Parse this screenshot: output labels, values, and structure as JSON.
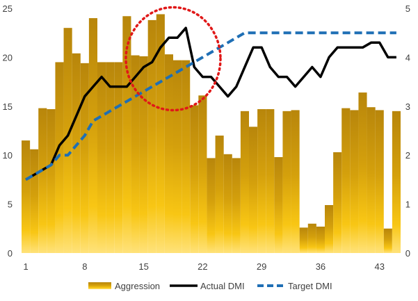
{
  "chart_data": {
    "type": "bar",
    "x": [
      1,
      2,
      3,
      4,
      5,
      6,
      7,
      8,
      9,
      10,
      11,
      12,
      13,
      14,
      15,
      16,
      17,
      18,
      19,
      20,
      21,
      22,
      23,
      24,
      25,
      26,
      27,
      28,
      29,
      30,
      31,
      32,
      33,
      34,
      35,
      36,
      37,
      38,
      39,
      40,
      41,
      42,
      43,
      44,
      45
    ],
    "x_ticks": [
      "1",
      "8",
      "15",
      "22",
      "29",
      "36",
      "43"
    ],
    "y_left_ticks": [
      "0",
      "5",
      "10",
      "15",
      "20",
      "25"
    ],
    "y_right_ticks": [
      "0",
      "1",
      "2",
      "3",
      "4",
      "5"
    ],
    "ylim_left": [
      0,
      25
    ],
    "ylim_right": [
      0,
      5
    ],
    "grid": false,
    "legend_position": "bottom",
    "series": [
      {
        "name": "Aggression",
        "type": "bar",
        "axis": "left",
        "values": [
          11.5,
          10.6,
          14.8,
          14.7,
          19.5,
          23.0,
          20.4,
          19.4,
          24.0,
          19.5,
          19.5,
          19.5,
          24.2,
          20.2,
          20.1,
          23.8,
          24.4,
          20.3,
          19.7,
          19.7,
          15.1,
          16.1,
          9.7,
          12.0,
          10.1,
          9.7,
          14.5,
          12.9,
          14.7,
          14.7,
          9.8,
          14.5,
          14.6,
          2.6,
          3.0,
          2.7,
          4.9,
          10.3,
          14.8,
          14.6,
          16.4,
          14.9,
          14.6,
          2.5,
          14.5
        ]
      },
      {
        "name": "Actual DMI",
        "type": "line",
        "axis": "right",
        "values": [
          1.5,
          1.6,
          1.7,
          1.8,
          2.2,
          2.4,
          2.8,
          3.2,
          3.4,
          3.6,
          3.4,
          3.4,
          3.4,
          3.6,
          3.8,
          3.9,
          4.2,
          4.4,
          4.4,
          4.6,
          3.8,
          3.6,
          3.6,
          3.4,
          3.2,
          3.4,
          3.8,
          4.2,
          4.2,
          3.8,
          3.6,
          3.6,
          3.4,
          3.6,
          3.8,
          3.6,
          4.0,
          4.2,
          4.2,
          4.2,
          4.2,
          4.3,
          4.3,
          4.0,
          4.0
        ]
      },
      {
        "name": "Target DMI",
        "type": "line",
        "axis": "right",
        "values": [
          1.5,
          1.6,
          1.7,
          1.8,
          2.0,
          2.0,
          2.2,
          2.4,
          2.7,
          2.8,
          2.9,
          3.0,
          3.1,
          3.2,
          3.3,
          3.4,
          3.5,
          3.6,
          3.7,
          3.8,
          3.9,
          4.0,
          4.1,
          4.2,
          4.3,
          4.4,
          4.5,
          4.5,
          4.5,
          4.5,
          4.5,
          4.5,
          4.5,
          4.5,
          4.5,
          4.5,
          4.5,
          4.5,
          4.5,
          4.5,
          4.5,
          4.5,
          4.5,
          4.5,
          4.5
        ]
      }
    ],
    "annotation": {
      "type": "dotted-circle",
      "color": "#e01818",
      "center_x": 18.5,
      "center_y_right": 3.97
    },
    "colors": {
      "bar_top": "#b8860b",
      "bar_bottom": "#ffe27a",
      "actual_line": "#000000",
      "target_line": "#1f6fb5",
      "axis_text": "#404040"
    }
  }
}
